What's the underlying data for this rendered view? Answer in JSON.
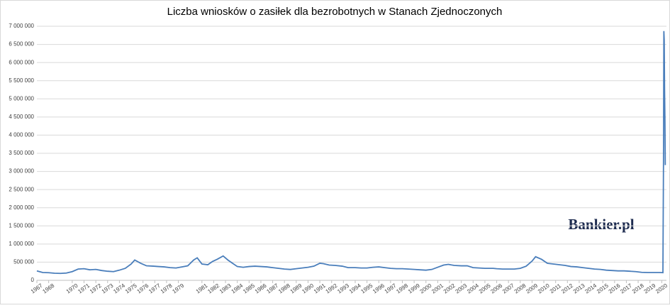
{
  "chart_data": {
    "type": "line",
    "title": "Liczba wniosków o zasiłek dla bezrobotnych w Stanach Zjednoczonych",
    "watermark": "Bankier.pl",
    "x": [
      1967.0,
      1967.5,
      1968.0,
      1968.5,
      1969.0,
      1969.5,
      1970.0,
      1970.5,
      1971.0,
      1971.5,
      1972.0,
      1972.5,
      1973.0,
      1973.5,
      1974.0,
      1974.5,
      1975.0,
      1975.3,
      1975.8,
      1976.3,
      1976.9,
      1977.3,
      1977.8,
      1978.3,
      1978.8,
      1979.3,
      1979.8,
      1980.3,
      1980.6,
      1981.0,
      1981.5,
      1981.9,
      1982.3,
      1982.8,
      1983.2,
      1983.6,
      1984.0,
      1984.5,
      1985.0,
      1985.5,
      1986.0,
      1986.5,
      1987.0,
      1987.5,
      1988.0,
      1988.5,
      1989.0,
      1989.5,
      1990.0,
      1990.5,
      1991.0,
      1991.3,
      1991.8,
      1992.3,
      1992.9,
      1993.4,
      1994.0,
      1994.5,
      1995.0,
      1995.5,
      1996.0,
      1996.5,
      1997.0,
      1997.5,
      1998.0,
      1998.5,
      1999.0,
      1999.5,
      2000.0,
      2000.5,
      2001.0,
      2001.5,
      2001.9,
      2002.4,
      2003.0,
      2003.5,
      2004.0,
      2004.5,
      2005.0,
      2005.7,
      2006.0,
      2006.5,
      2007.0,
      2007.5,
      2008.0,
      2008.5,
      2009.0,
      2009.3,
      2009.8,
      2010.3,
      2010.8,
      2011.3,
      2011.8,
      2012.3,
      2012.8,
      2013.3,
      2013.8,
      2014.3,
      2014.8,
      2015.3,
      2015.8,
      2016.3,
      2016.8,
      2017.3,
      2017.8,
      2018.3,
      2018.8,
      2019.3,
      2019.8,
      2020.1,
      2020.15,
      2020.18,
      2020.21,
      2020.24,
      2020.27,
      2020.3
    ],
    "values": [
      260000,
      215000,
      210000,
      195000,
      190000,
      200000,
      240000,
      310000,
      320000,
      290000,
      300000,
      270000,
      250000,
      240000,
      280000,
      330000,
      450000,
      560000,
      470000,
      400000,
      390000,
      380000,
      370000,
      350000,
      340000,
      370000,
      400000,
      560000,
      620000,
      450000,
      430000,
      520000,
      580000,
      670000,
      560000,
      470000,
      380000,
      360000,
      380000,
      390000,
      380000,
      370000,
      350000,
      330000,
      310000,
      300000,
      320000,
      340000,
      360000,
      390000,
      470000,
      460000,
      420000,
      410000,
      390000,
      350000,
      350000,
      340000,
      340000,
      360000,
      370000,
      350000,
      330000,
      320000,
      320000,
      310000,
      300000,
      290000,
      280000,
      300000,
      360000,
      420000,
      440000,
      410000,
      400000,
      400000,
      350000,
      340000,
      330000,
      330000,
      320000,
      310000,
      310000,
      310000,
      330000,
      390000,
      530000,
      650000,
      580000,
      470000,
      450000,
      430000,
      410000,
      380000,
      370000,
      350000,
      330000,
      310000,
      300000,
      280000,
      270000,
      260000,
      260000,
      250000,
      240000,
      220000,
      215000,
      215000,
      215000,
      211000,
      3300000,
      6867000,
      6615000,
      5237000,
      4442000,
      3176000
    ],
    "color": "#4a7ebb",
    "xlim": [
      1967,
      2020.4
    ],
    "xticks": [
      1967,
      1968,
      1970,
      1971,
      1972,
      1973,
      1974,
      1975,
      1976,
      1977,
      1978,
      1979,
      1981,
      1982,
      1983,
      1984,
      1985,
      1986,
      1987,
      1988,
      1989,
      1990,
      1991,
      1992,
      1993,
      1994,
      1995,
      1996,
      1997,
      1998,
      1999,
      2000,
      2001,
      2002,
      2003,
      2004,
      2005,
      2006,
      2007,
      2008,
      2009,
      2010,
      2011,
      2012,
      2013,
      2014,
      2015,
      2016,
      2017,
      2018,
      2019,
      2020
    ],
    "ylim": [
      0,
      7000000
    ],
    "yticks": [
      0,
      {
        "value": 500000,
        "label": "500 000"
      },
      {
        "value": 1000000,
        "label": "1 000 000"
      },
      {
        "value": 1500000,
        "label": "1 500 000"
      },
      {
        "value": 2000000,
        "label": "2 000 000"
      },
      {
        "value": 2500000,
        "label": "2 500 000"
      },
      {
        "value": 3000000,
        "label": "3 000 000"
      },
      {
        "value": 3500000,
        "label": "3 500 000"
      },
      {
        "value": 4000000,
        "label": "4 000 000"
      },
      {
        "value": 4500000,
        "label": "4 500 000"
      },
      {
        "value": 5000000,
        "label": "5 000 000"
      },
      {
        "value": 5500000,
        "label": "5 500 000"
      },
      {
        "value": 6000000,
        "label": "6 000 000"
      },
      {
        "value": 6500000,
        "label": "6 500 000"
      },
      {
        "value": 7000000,
        "label": "7 000 000"
      }
    ],
    "grid": true
  }
}
